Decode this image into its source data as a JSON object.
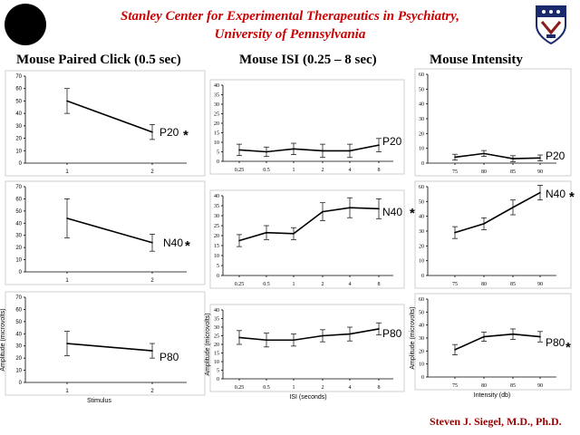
{
  "header": {
    "title_line1": "Stanley Center for Experimental Therapeutics in Psychiatry,",
    "title_line2": "University of Pennsylvania"
  },
  "columns": {
    "paired_click": "Mouse Paired Click (0.5 sec)",
    "isi": "Mouse ISI (0.25 – 8 sec)",
    "intensity": "Mouse Intensity"
  },
  "footer": {
    "author": "Steven J. Siegel, M.D., Ph.D."
  },
  "colors": {
    "title": "#cc0000",
    "footer": "#990000",
    "line": "#000000",
    "frame": "#cfcfcf"
  },
  "chart_data": [
    {
      "id": "pc-p20",
      "type": "line",
      "categories": [
        "1",
        "2"
      ],
      "values": [
        50,
        25
      ],
      "errors": [
        10,
        6
      ],
      "ylim": [
        0,
        70
      ],
      "yticks": [
        0,
        10,
        20,
        30,
        40,
        50,
        60,
        70
      ],
      "tag": "P20",
      "significant": true,
      "ylabel": "",
      "xlabel": ""
    },
    {
      "id": "pc-n40",
      "type": "line",
      "categories": [
        "1",
        "2"
      ],
      "values": [
        44,
        24
      ],
      "errors": [
        16,
        7
      ],
      "ylim": [
        0,
        70
      ],
      "yticks": [
        0,
        10,
        20,
        30,
        40,
        50,
        60,
        70
      ],
      "tag": "N40",
      "significant": true,
      "ylabel": "",
      "xlabel": ""
    },
    {
      "id": "pc-p80",
      "type": "line",
      "categories": [
        "1",
        "2"
      ],
      "values": [
        32,
        26
      ],
      "errors": [
        10,
        6
      ],
      "ylim": [
        0,
        70
      ],
      "yticks": [
        0,
        10,
        20,
        30,
        40,
        50,
        60,
        70
      ],
      "tag": "P80",
      "significant": false,
      "ylabel": "Amplitude (microvolts)",
      "xlabel": "Stimulus"
    },
    {
      "id": "isi-p20",
      "type": "line",
      "categories": [
        "0.25",
        "0.5",
        "1",
        "2",
        "4",
        "8"
      ],
      "values": [
        6,
        5,
        6.5,
        5.5,
        5.5,
        8.5
      ],
      "errors": [
        3,
        2.5,
        3,
        3.5,
        3.5,
        3.5
      ],
      "ylim": [
        0,
        40
      ],
      "yticks": [
        0,
        5,
        10,
        15,
        20,
        25,
        30,
        35,
        40
      ],
      "tag": "P20",
      "significant": false,
      "ylabel": "",
      "xlabel": ""
    },
    {
      "id": "isi-n40",
      "type": "line",
      "categories": [
        "0.25",
        "0.5",
        "1",
        "2",
        "4",
        "8"
      ],
      "values": [
        17.5,
        21.5,
        21,
        32,
        34,
        33.5
      ],
      "errors": [
        3,
        3.5,
        3,
        4.5,
        5,
        5
      ],
      "ylim": [
        0,
        40
      ],
      "yticks": [
        0,
        5,
        10,
        15,
        20,
        25,
        30,
        35,
        40
      ],
      "tag": "N40",
      "significant": true,
      "ylabel": "",
      "xlabel": ""
    },
    {
      "id": "isi-p80",
      "type": "line",
      "categories": [
        "0.25",
        "0.5",
        "1",
        "2",
        "4",
        "8"
      ],
      "values": [
        24,
        22.5,
        22.5,
        25,
        26,
        29
      ],
      "errors": [
        4,
        4,
        3.5,
        3.5,
        4,
        3.5
      ],
      "ylim": [
        0,
        40
      ],
      "yticks": [
        0,
        5,
        10,
        15,
        20,
        25,
        30,
        35,
        40
      ],
      "tag": "P80",
      "significant": false,
      "ylabel": "Amplitude (microvolts)",
      "xlabel": "ISI (seconds)"
    },
    {
      "id": "int-p20",
      "type": "line",
      "categories": [
        "75",
        "80",
        "85",
        "90"
      ],
      "values": [
        4,
        6.5,
        3,
        3.5
      ],
      "errors": [
        2,
        2,
        2,
        2
      ],
      "ylim": [
        0,
        60
      ],
      "yticks": [
        0,
        10,
        20,
        30,
        40,
        50,
        60
      ],
      "tag": "P20",
      "significant": false,
      "ylabel": "",
      "xlabel": ""
    },
    {
      "id": "int-n40",
      "type": "line",
      "categories": [
        "75",
        "80",
        "85",
        "90"
      ],
      "values": [
        29,
        35,
        46,
        56
      ],
      "errors": [
        4,
        4,
        5,
        5
      ],
      "ylim": [
        0,
        60
      ],
      "yticks": [
        0,
        10,
        20,
        30,
        40,
        50,
        60
      ],
      "tag": "N40",
      "significant": true,
      "ylabel": "",
      "xlabel": ""
    },
    {
      "id": "int-p80",
      "type": "line",
      "categories": [
        "75",
        "80",
        "85",
        "90"
      ],
      "values": [
        21,
        31,
        33,
        31
      ],
      "errors": [
        4,
        3.5,
        4,
        4
      ],
      "ylim": [
        0,
        60
      ],
      "yticks": [
        0,
        10,
        20,
        30,
        40,
        50,
        60
      ],
      "tag": "P80",
      "significant": true,
      "ylabel": "Amplitude (microvolts)",
      "xlabel": "Intensity (db)"
    }
  ]
}
